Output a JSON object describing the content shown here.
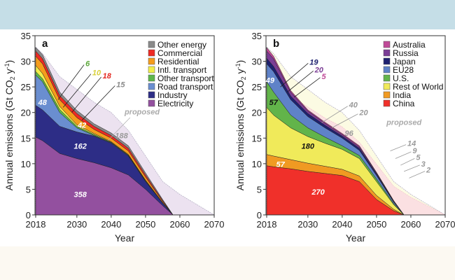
{
  "chart_data": [
    {
      "type": "area",
      "stacked": true,
      "panel_label": "a",
      "xlabel": "Year",
      "ylabel": "Annual emissions (Gt CO2 y-1)",
      "ylabel_parts": {
        "main": "Annual emissions (Gt CO",
        "sub": "2",
        "mid": "  y",
        "sup": "-1",
        "end": ")"
      },
      "xlim": [
        2017.8,
        2070
      ],
      "ylim": [
        0,
        35
      ],
      "xticks": [
        2018,
        2030,
        2040,
        2050,
        2060,
        2070
      ],
      "yticks": [
        0,
        5,
        10,
        15,
        20,
        25,
        30,
        35
      ],
      "grid": false,
      "legend_position": "top-right",
      "x": [
        2018,
        2020,
        2025,
        2030,
        2035,
        2040,
        2045,
        2050,
        2055,
        2058
      ],
      "series": [
        {
          "name": "Electricity",
          "color": "#93509f",
          "values": [
            15.2,
            14.5,
            12,
            11,
            10.2,
            9.2,
            7.8,
            5,
            1.8,
            0
          ]
        },
        {
          "name": "Industry",
          "color": "#2d2d86",
          "values": [
            6.2,
            6,
            5.3,
            5.2,
            5.2,
            4.8,
            3.7,
            1.5,
            0.5,
            0
          ]
        },
        {
          "name": "Road transport",
          "color": "#6a8ed0",
          "values": [
            5.9,
            5.5,
            2.7,
            0.8,
            0.1,
            0.1,
            0.1,
            0.1,
            0,
            0
          ]
        },
        {
          "name": "Other transport",
          "color": "#5db74a",
          "values": [
            0.7,
            0.6,
            0.6,
            0.3,
            0.2,
            0.1,
            0.1,
            0.1,
            0.05,
            0
          ]
        },
        {
          "name": "Intl. transport",
          "color": "#f2ee4a",
          "values": [
            1.2,
            1,
            0.6,
            0.3,
            0.2,
            0.1,
            0.1,
            0.1,
            0.05,
            0
          ]
        },
        {
          "name": "Residential",
          "color": "#f59c1c",
          "values": [
            1.8,
            1.9,
            1.3,
            1.4,
            0.8,
            0.7,
            0.7,
            0.6,
            0.2,
            0
          ]
        },
        {
          "name": "Commercial",
          "color": "#ee2a24",
          "values": [
            1,
            1,
            0.8,
            0.8,
            0.6,
            0.5,
            0.5,
            0.4,
            0.2,
            0
          ]
        },
        {
          "name": "Other energy",
          "color": "#8a8a8a",
          "values": [
            0.7,
            0.8,
            0.7,
            0.6,
            0.5,
            0.5,
            0.5,
            0.4,
            0.2,
            0
          ]
        }
      ],
      "proposed": {
        "label": "proposed",
        "color": "#ece2f0",
        "x": [
          2018,
          2020,
          2025,
          2030,
          2035,
          2040,
          2045,
          2050,
          2055,
          2060,
          2065,
          2070
        ],
        "values": [
          32.8,
          31.5,
          27,
          24.5,
          22,
          20,
          16.5,
          11.5,
          6.5,
          4,
          2,
          0
        ]
      },
      "annotations": [
        {
          "text": "358",
          "color": "#ffffff",
          "x": 2031,
          "y": 4
        },
        {
          "text": "162",
          "color": "#ffffff",
          "x": 2031,
          "y": 13.5
        },
        {
          "text": "48",
          "color": "#ffffff",
          "x": 2020,
          "y": 22
        },
        {
          "text": "42",
          "color": "#ffffff",
          "x": 2031.5,
          "y": 17.6
        },
        {
          "text": "188",
          "color": "#9a9a9a",
          "x": 2043,
          "y": 15.5
        },
        {
          "text": "6",
          "color": "#5da83c",
          "x": 2032.5,
          "y": 29.6,
          "to": [
            2024.5,
            22.5
          ]
        },
        {
          "text": "10",
          "color": "#d8d03a",
          "x": 2034.5,
          "y": 27.8,
          "to": [
            2026,
            21
          ]
        },
        {
          "text": "18",
          "color": "#e42a22",
          "x": 2037.5,
          "y": 27.2,
          "to": [
            2028.5,
            20
          ]
        },
        {
          "text": "15",
          "color": "#8a8a8a",
          "x": 2041.5,
          "y": 25.5,
          "to": [
            2031.5,
            18.5
          ]
        }
      ]
    },
    {
      "type": "area",
      "stacked": true,
      "panel_label": "b",
      "xlabel": "Year",
      "ylabel": "Annual emissions (Gt CO2 y-1)",
      "ylabel_parts": {
        "main": "Annual emissions (Gt CO",
        "sub": "2",
        "mid": "  y",
        "sup": "-1",
        "end": ")"
      },
      "xlim": [
        2017.8,
        2070
      ],
      "ylim": [
        0,
        35
      ],
      "xticks": [
        2018,
        2030,
        2040,
        2050,
        2060,
        2070
      ],
      "yticks": [
        0,
        5,
        10,
        15,
        20,
        25,
        30,
        35
      ],
      "grid": false,
      "legend_position": "top-right",
      "x": [
        2018,
        2020,
        2025,
        2030,
        2035,
        2040,
        2045,
        2050,
        2055,
        2058
      ],
      "series": [
        {
          "name": "China",
          "color": "#f0302a",
          "values": [
            9.6,
            9.4,
            9,
            8.5,
            8.1,
            7.7,
            6.5,
            3,
            0.8,
            0
          ]
        },
        {
          "name": "India",
          "color": "#f09a22",
          "values": [
            2.2,
            2.1,
            1.8,
            1.6,
            1.4,
            1.2,
            1.1,
            0.8,
            0.3,
            0
          ]
        },
        {
          "name": "Rest of World",
          "color": "#f0ea5a",
          "values": [
            9.2,
            8,
            6.2,
            5.2,
            4.5,
            3.9,
            3.4,
            2.7,
            0.9,
            0
          ]
        },
        {
          "name": "U.S.",
          "color": "#62b44a",
          "values": [
            5,
            4.5,
            2.5,
            1.7,
            1.2,
            0.7,
            0.6,
            0.5,
            0.2,
            0
          ]
        },
        {
          "name": "EU28",
          "color": "#5f82c8",
          "values": [
            3.5,
            4,
            3,
            2.2,
            1.8,
            1.5,
            1,
            0.7,
            0.3,
            0
          ]
        },
        {
          "name": "Japan",
          "color": "#1e2170",
          "values": [
            1.1,
            1,
            0.7,
            0.6,
            0.5,
            0.4,
            0.4,
            0.3,
            0.1,
            0
          ]
        },
        {
          "name": "Russia",
          "color": "#7b3d95",
          "values": [
            1.4,
            1.5,
            0.8,
            0.5,
            0.4,
            0.3,
            0.3,
            0.2,
            0.1,
            0
          ]
        },
        {
          "name": "Australia",
          "color": "#c04a98",
          "values": [
            0.7,
            0.5,
            0.3,
            0.2,
            0.2,
            0.2,
            0.2,
            0.1,
            0.1,
            0
          ]
        }
      ],
      "proposed": {
        "label": "proposed",
        "color": "#fcfbe3",
        "inner_color": "#fbe0e2",
        "x": [
          2018,
          2020,
          2025,
          2030,
          2035,
          2040,
          2045,
          2050,
          2055,
          2060,
          2065,
          2070
        ],
        "values": [
          32.8,
          31.5,
          27,
          24.5,
          22,
          20,
          16.5,
          11.5,
          6.5,
          4,
          2,
          0
        ]
      },
      "annotations": [
        {
          "text": "270",
          "color": "#ffffff",
          "x": 2033,
          "y": 4.5
        },
        {
          "text": "57",
          "color": "#ffffff",
          "x": 2022,
          "y": 9.9
        },
        {
          "text": "180",
          "color": "#111111",
          "x": 2030,
          "y": 13.5
        },
        {
          "text": "57",
          "color": "#111111",
          "x": 2020,
          "y": 22
        },
        {
          "text": "49",
          "color": "#ffffff",
          "x": 2019,
          "y": 26.3
        },
        {
          "text": "19",
          "color": "#1e2170",
          "x": 2030.5,
          "y": 29.9,
          "to": [
            2022,
            25
          ]
        },
        {
          "text": "20",
          "color": "#7b3d95",
          "x": 2032,
          "y": 28.4,
          "to": [
            2024,
            24
          ]
        },
        {
          "text": "5",
          "color": "#c04a98",
          "x": 2034,
          "y": 27.1,
          "to": [
            2026,
            23
          ]
        },
        {
          "text": "40",
          "color": "#9a9a9a",
          "x": 2042,
          "y": 21.5,
          "to": [
            2034,
            18
          ]
        },
        {
          "text": "20",
          "color": "#9a9a9a",
          "x": 2045,
          "y": 20,
          "to": [
            2037,
            17
          ]
        },
        {
          "text": "96",
          "color": "#9a9a9a",
          "x": 2042,
          "y": 16
        },
        {
          "text": "14",
          "color": "#9a9a9a",
          "x": 2059,
          "y": 14,
          "to": [
            2054,
            12.5
          ]
        },
        {
          "text": "9",
          "color": "#9a9a9a",
          "x": 2060.5,
          "y": 12.6,
          "to": [
            2055.5,
            11
          ]
        },
        {
          "text": "5",
          "color": "#9a9a9a",
          "x": 2061.5,
          "y": 11.3,
          "to": [
            2057,
            9.7
          ]
        },
        {
          "text": "3",
          "color": "#9a9a9a",
          "x": 2063,
          "y": 10,
          "to": [
            2058,
            8.5
          ]
        },
        {
          "text": "2",
          "color": "#9a9a9a",
          "x": 2064.5,
          "y": 8.8,
          "to": [
            2059.5,
            7.2
          ]
        }
      ]
    }
  ]
}
